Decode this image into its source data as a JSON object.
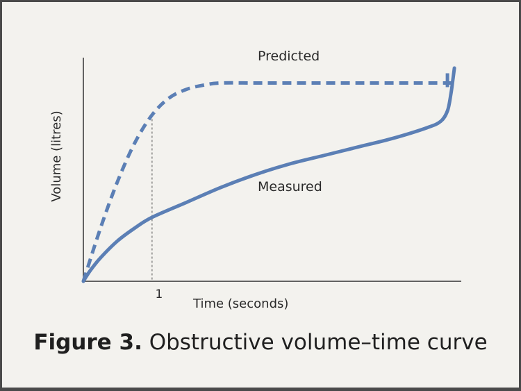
{
  "caption": {
    "figure_label": "Figure 3.",
    "title": "Obstructive volume–time curve"
  },
  "chart_data": {
    "type": "line",
    "title": "Obstructive volume–time curve",
    "xlabel": "Time (seconds)",
    "ylabel": "Volume (litres)",
    "xticks": [
      {
        "value": 1,
        "label": "1"
      }
    ],
    "xlim": [
      0,
      5.5
    ],
    "ylim": [
      0,
      1.0
    ],
    "reference_line": {
      "x": 1,
      "style": "dashed"
    },
    "grid": false,
    "colors": {
      "line": "#5b7fb5",
      "axis": "#333333",
      "background": "#f3f2ee"
    },
    "series": [
      {
        "name": "Predicted",
        "style": "dashed",
        "x": [
          0,
          0.25,
          0.5,
          0.75,
          1.0,
          1.25,
          1.5,
          1.75,
          2.0,
          2.5,
          3.0,
          4.0,
          5.0,
          5.4
        ],
        "y": [
          0,
          0.25,
          0.47,
          0.65,
          0.78,
          0.86,
          0.9,
          0.92,
          0.93,
          0.93,
          0.93,
          0.93,
          0.93,
          0.93
        ]
      },
      {
        "name": "Measured",
        "style": "solid",
        "x": [
          0,
          0.1,
          0.25,
          0.5,
          0.75,
          1.0,
          1.5,
          2.0,
          2.5,
          3.0,
          3.5,
          4.0,
          4.5,
          5.0,
          5.2,
          5.3,
          5.35,
          5.38,
          5.4
        ],
        "y": [
          0,
          0.05,
          0.11,
          0.19,
          0.25,
          0.3,
          0.37,
          0.44,
          0.5,
          0.55,
          0.59,
          0.63,
          0.67,
          0.72,
          0.75,
          0.8,
          0.88,
          0.95,
          1.0
        ]
      }
    ]
  }
}
